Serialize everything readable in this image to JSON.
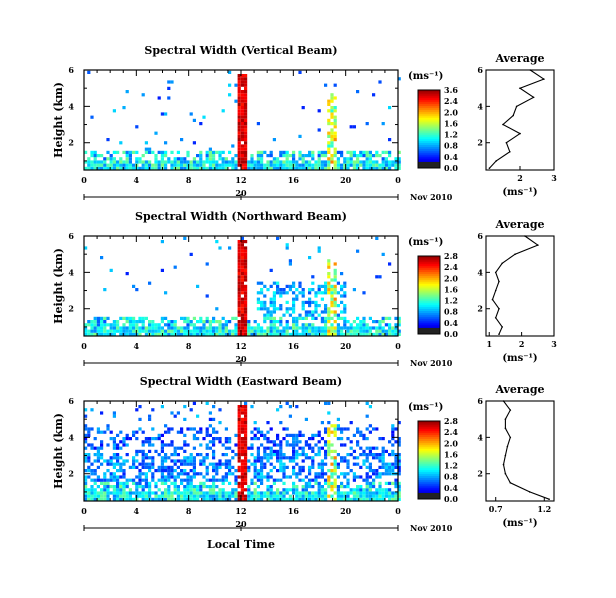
{
  "chart_data": [
    {
      "type": "heatmap",
      "title": "Spectral Width (Vertical Beam)",
      "ylabel": "Height (km)",
      "xlabel": "",
      "x_ticks": [
        "0",
        "4",
        "8",
        "12",
        "16",
        "20",
        "0"
      ],
      "y_ticks": [
        "2",
        "4",
        "6"
      ],
      "xlim": [
        0,
        24
      ],
      "ylim": [
        0.5,
        6
      ],
      "date_marker": "20",
      "date_label": "Nov 2010",
      "colorbar_unit": "(ms⁻¹)",
      "colorbar_ticks": [
        "3.6",
        "2.4",
        "2.0",
        "1.6",
        "1.2",
        "0.8",
        "0.4",
        "0.0"
      ],
      "average": {
        "title": "Average",
        "xlabel": "(ms⁻¹)",
        "x_ticks": [
          "2",
          "3"
        ],
        "xlim": [
          1,
          3
        ],
        "y_ticks": [
          "2",
          "4",
          "6"
        ],
        "heights": [
          0.6,
          1.0,
          1.5,
          2.0,
          2.5,
          3.0,
          3.5,
          4.0,
          4.5,
          5.0,
          5.5,
          6.0
        ],
        "values": [
          1.1,
          1.3,
          1.7,
          1.6,
          2.0,
          1.5,
          1.8,
          1.9,
          2.4,
          2.0,
          2.7,
          2.3
        ]
      }
    },
    {
      "type": "heatmap",
      "title": "Spectral Width (Northward Beam)",
      "ylabel": "Height (km)",
      "xlabel": "",
      "x_ticks": [
        "0",
        "4",
        "8",
        "12",
        "16",
        "20",
        "0"
      ],
      "y_ticks": [
        "2",
        "4",
        "6"
      ],
      "xlim": [
        0,
        24
      ],
      "ylim": [
        0.5,
        6
      ],
      "date_marker": "20",
      "date_label": "Nov 2010",
      "colorbar_unit": "(ms⁻¹)",
      "colorbar_ticks": [
        "2.8",
        "2.4",
        "2.0",
        "1.6",
        "1.2",
        "0.8",
        "0.4",
        "0.0"
      ],
      "average": {
        "title": "Average",
        "xlabel": "(ms⁻¹)",
        "x_ticks": [
          "1",
          "2",
          "3"
        ],
        "xlim": [
          0.9,
          3
        ],
        "y_ticks": [
          "2",
          "4",
          "6"
        ],
        "heights": [
          0.6,
          1.0,
          1.5,
          2.0,
          2.5,
          3.0,
          3.5,
          4.0,
          4.5,
          5.0,
          5.5,
          6.0
        ],
        "values": [
          1.3,
          1.4,
          1.2,
          1.3,
          1.1,
          1.2,
          1.3,
          1.2,
          1.4,
          1.8,
          2.5,
          2.1
        ]
      }
    },
    {
      "type": "heatmap",
      "title": "Spectral Width (Eastward Beam)",
      "ylabel": "Height (km)",
      "xlabel": "Local Time",
      "x_ticks": [
        "0",
        "4",
        "8",
        "12",
        "16",
        "20",
        "0"
      ],
      "y_ticks": [
        "2",
        "4",
        "6"
      ],
      "xlim": [
        0,
        24
      ],
      "ylim": [
        0.5,
        6
      ],
      "date_marker": "20",
      "date_label": "Nov 2010",
      "colorbar_unit": "(ms⁻¹)",
      "colorbar_ticks": [
        "2.8",
        "2.4",
        "2.0",
        "1.6",
        "1.2",
        "0.8",
        "0.4",
        "0.0"
      ],
      "average": {
        "title": "Average",
        "xlabel": "(ms⁻¹)",
        "x_ticks": [
          "0.7",
          "1.2"
        ],
        "xlim": [
          0.6,
          1.3
        ],
        "y_ticks": [
          "2",
          "4",
          "6"
        ],
        "heights": [
          0.6,
          1.0,
          1.5,
          2.0,
          2.5,
          3.0,
          3.5,
          4.0,
          4.5,
          5.0,
          5.5,
          6.0
        ],
        "values": [
          1.25,
          1.05,
          0.85,
          0.8,
          0.78,
          0.8,
          0.82,
          0.85,
          0.8,
          0.8,
          0.85,
          0.78
        ]
      }
    }
  ]
}
